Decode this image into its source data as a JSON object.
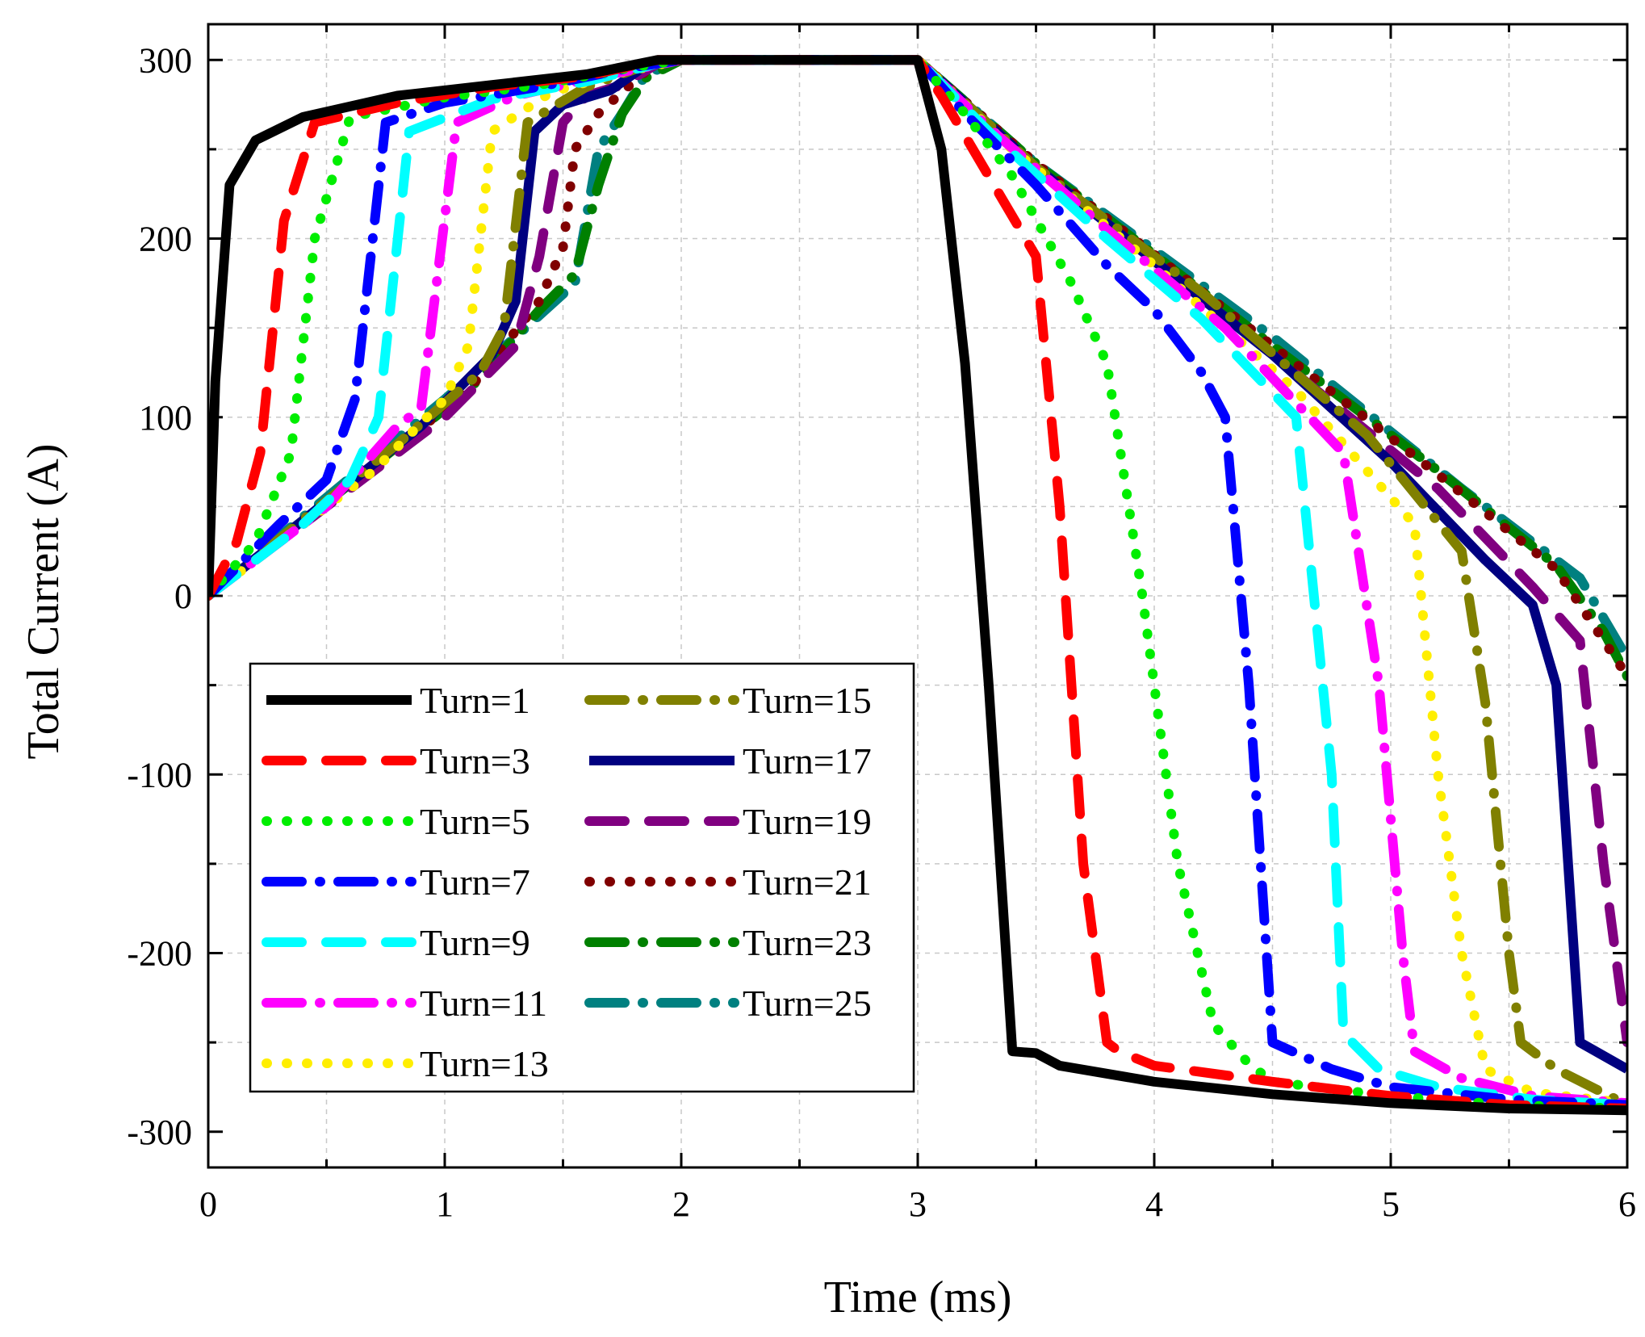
{
  "chart_data": {
    "type": "line",
    "title": "",
    "xlabel": "Time (ms)",
    "ylabel": "Total Current (A)",
    "xlim": [
      0,
      6
    ],
    "ylim": [
      -320,
      320
    ],
    "xticks": [
      0,
      1,
      2,
      3,
      4,
      5,
      6
    ],
    "xtick_labels": [
      "0",
      "1",
      "2",
      "3",
      "4",
      "5",
      "6"
    ],
    "yticks": [
      -300,
      -200,
      -100,
      0,
      100,
      200,
      300
    ],
    "ytick_labels": [
      "-300",
      "-200",
      "-100",
      "0",
      "100",
      "200",
      "300"
    ],
    "grid": true,
    "legend_position": "lower-left",
    "series": [
      {
        "name": "Turn=1",
        "turn": 1,
        "color": "#000000",
        "dash": "solid",
        "x": [
          0,
          0.03,
          0.09,
          0.2,
          0.4,
          0.8,
          1.2,
          1.6,
          1.9,
          2.0,
          3.0,
          3.1,
          3.2,
          3.3,
          3.4,
          3.5,
          3.6,
          4.0,
          4.5,
          5.0,
          5.5,
          6.0
        ],
        "y": [
          0,
          120,
          230,
          255,
          268,
          280,
          286,
          292,
          300,
          300,
          300,
          250,
          130,
          -50,
          -255,
          -256,
          -263,
          -272,
          -279,
          -284,
          -287,
          -288
        ]
      },
      {
        "name": "Turn=3",
        "turn": 3,
        "color": "#ff0000",
        "dash": "dash",
        "x": [
          0,
          0.12,
          0.22,
          0.32,
          0.45,
          0.8,
          1.2,
          1.6,
          1.9,
          2.0,
          3.0,
          3.1,
          3.3,
          3.5,
          3.6,
          3.7,
          3.8,
          3.85,
          4.0,
          4.5,
          5.0,
          5.5,
          6.0
        ],
        "y": [
          0,
          30,
          80,
          210,
          265,
          276,
          285,
          291,
          300,
          300,
          300,
          280,
          235,
          190,
          50,
          -150,
          -250,
          -255,
          -263,
          -272,
          -280,
          -285,
          -287
        ]
      },
      {
        "name": "Turn=5",
        "turn": 5,
        "color": "#00ee00",
        "dash": "dot",
        "x": [
          0,
          0.2,
          0.35,
          0.45,
          0.6,
          1.0,
          1.4,
          1.8,
          2.0,
          3.0,
          3.2,
          3.4,
          3.65,
          3.8,
          3.95,
          4.1,
          4.25,
          4.4,
          4.5,
          5.0,
          5.5,
          6.0
        ],
        "y": [
          0,
          30,
          80,
          200,
          268,
          279,
          286,
          296,
          300,
          300,
          270,
          235,
          175,
          130,
          0,
          -150,
          -240,
          -262,
          -272,
          -280,
          -285,
          -287
        ]
      },
      {
        "name": "Turn=7",
        "turn": 7,
        "color": "#0000ff",
        "dash": "dashdot",
        "x": [
          0,
          0.3,
          0.5,
          0.62,
          0.75,
          1.0,
          1.4,
          1.8,
          2.0,
          3.0,
          3.2,
          3.5,
          3.8,
          4.0,
          4.2,
          4.3,
          4.4,
          4.5,
          4.75,
          5.0,
          5.5,
          6.0
        ],
        "y": [
          0,
          40,
          65,
          110,
          265,
          276,
          285,
          296,
          300,
          300,
          270,
          230,
          185,
          160,
          125,
          100,
          -50,
          -250,
          -265,
          -275,
          -282,
          -285
        ]
      },
      {
        "name": "Turn=9",
        "turn": 9,
        "color": "#00ffff",
        "dash": "dash",
        "x": [
          0,
          0.4,
          0.6,
          0.72,
          0.85,
          1.2,
          1.6,
          1.9,
          2.0,
          3.0,
          3.3,
          3.8,
          4.2,
          4.6,
          4.75,
          4.8,
          4.95,
          5.2,
          5.6,
          6.0
        ],
        "y": [
          0,
          40,
          65,
          100,
          260,
          278,
          288,
          298,
          300,
          300,
          260,
          200,
          155,
          100,
          -100,
          -245,
          -265,
          -275,
          -282,
          -285
        ]
      },
      {
        "name": "Turn=11",
        "turn": 11,
        "color": "#ff00ff",
        "dash": "dashdot",
        "x": [
          0,
          0.5,
          0.8,
          0.9,
          1.05,
          1.3,
          1.7,
          2.0,
          3.0,
          3.3,
          3.8,
          4.3,
          4.8,
          4.95,
          5.05,
          5.1,
          5.3,
          5.6,
          6.0
        ],
        "y": [
          0,
          50,
          95,
          105,
          265,
          280,
          292,
          300,
          300,
          262,
          205,
          150,
          80,
          -50,
          -200,
          -255,
          -270,
          -280,
          -284
        ]
      },
      {
        "name": "Turn=13",
        "turn": 13,
        "color": "#ffee00",
        "dash": "dot",
        "x": [
          0,
          0.7,
          1.0,
          1.1,
          1.2,
          1.45,
          1.75,
          2.0,
          3.0,
          3.4,
          4.0,
          4.6,
          5.1,
          5.2,
          5.3,
          5.4,
          5.6,
          6.0
        ],
        "y": [
          0,
          70,
          110,
          140,
          260,
          282,
          293,
          300,
          300,
          250,
          185,
          115,
          40,
          -100,
          -200,
          -265,
          -278,
          -284
        ]
      },
      {
        "name": "Turn=15",
        "turn": 15,
        "color": "#808000",
        "dash": "dashdot",
        "x": [
          0,
          0.8,
          1.15,
          1.25,
          1.35,
          1.6,
          1.85,
          2.0,
          3.0,
          3.5,
          4.2,
          4.9,
          5.3,
          5.4,
          5.5,
          5.55,
          5.7,
          6.0
        ],
        "y": [
          0,
          85,
          125,
          150,
          265,
          285,
          297,
          300,
          300,
          240,
          170,
          90,
          25,
          -60,
          -200,
          -250,
          -265,
          -285
        ]
      },
      {
        "name": "Turn=17",
        "turn": 17,
        "color": "#000080",
        "dash": "solid",
        "x": [
          0,
          0.9,
          1.2,
          1.3,
          1.38,
          1.5,
          1.7,
          1.85,
          2.0,
          3.0,
          3.5,
          4.5,
          5.0,
          5.4,
          5.6,
          5.7,
          5.8,
          6.0
        ],
        "y": [
          0,
          95,
          135,
          165,
          260,
          275,
          283,
          297,
          300,
          300,
          240,
          135,
          75,
          20,
          -5,
          -50,
          -250,
          -265
        ]
      },
      {
        "name": "Turn=19",
        "turn": 19,
        "color": "#800080",
        "dash": "dash",
        "x": [
          0,
          1.0,
          1.3,
          1.4,
          1.5,
          1.6,
          1.75,
          1.9,
          2.0,
          3.0,
          3.5,
          4.5,
          5.2,
          5.6,
          5.8,
          5.9,
          6.0
        ],
        "y": [
          0,
          100,
          140,
          190,
          265,
          280,
          286,
          298,
          300,
          300,
          240,
          135,
          60,
          5,
          -25,
          -150,
          -250
        ]
      },
      {
        "name": "Turn=21",
        "turn": 21,
        "color": "#800000",
        "dash": "dot",
        "x": [
          0,
          1.1,
          1.4,
          1.5,
          1.55,
          1.65,
          1.8,
          1.9,
          2.0,
          3.0,
          3.5,
          4.5,
          5.2,
          5.7,
          5.9,
          6.0
        ],
        "y": [
          0,
          115,
          165,
          195,
          250,
          270,
          288,
          299,
          300,
          300,
          242,
          140,
          68,
          15,
          -25,
          -45
        ]
      },
      {
        "name": "Turn=23",
        "turn": 23,
        "color": "#008000",
        "dash": "dashdot",
        "x": [
          0,
          1.1,
          1.4,
          1.55,
          1.65,
          1.75,
          1.85,
          2.0,
          3.0,
          3.5,
          4.5,
          5.2,
          5.7,
          5.9,
          6.0
        ],
        "y": [
          0,
          115,
          160,
          180,
          230,
          270,
          290,
          300,
          300,
          242,
          140,
          70,
          17,
          -20,
          -45
        ]
      },
      {
        "name": "Turn=25",
        "turn": 25,
        "color": "#008080",
        "dash": "dashdot",
        "x": [
          0,
          0.5,
          1.0,
          1.3,
          1.55,
          1.65,
          1.75,
          1.85,
          2.0,
          3.0,
          3.5,
          4.5,
          5.3,
          5.8,
          6.0
        ],
        "y": [
          0,
          55,
          110,
          145,
          175,
          250,
          270,
          292,
          300,
          300,
          242,
          145,
          60,
          10,
          -35
        ]
      }
    ]
  }
}
